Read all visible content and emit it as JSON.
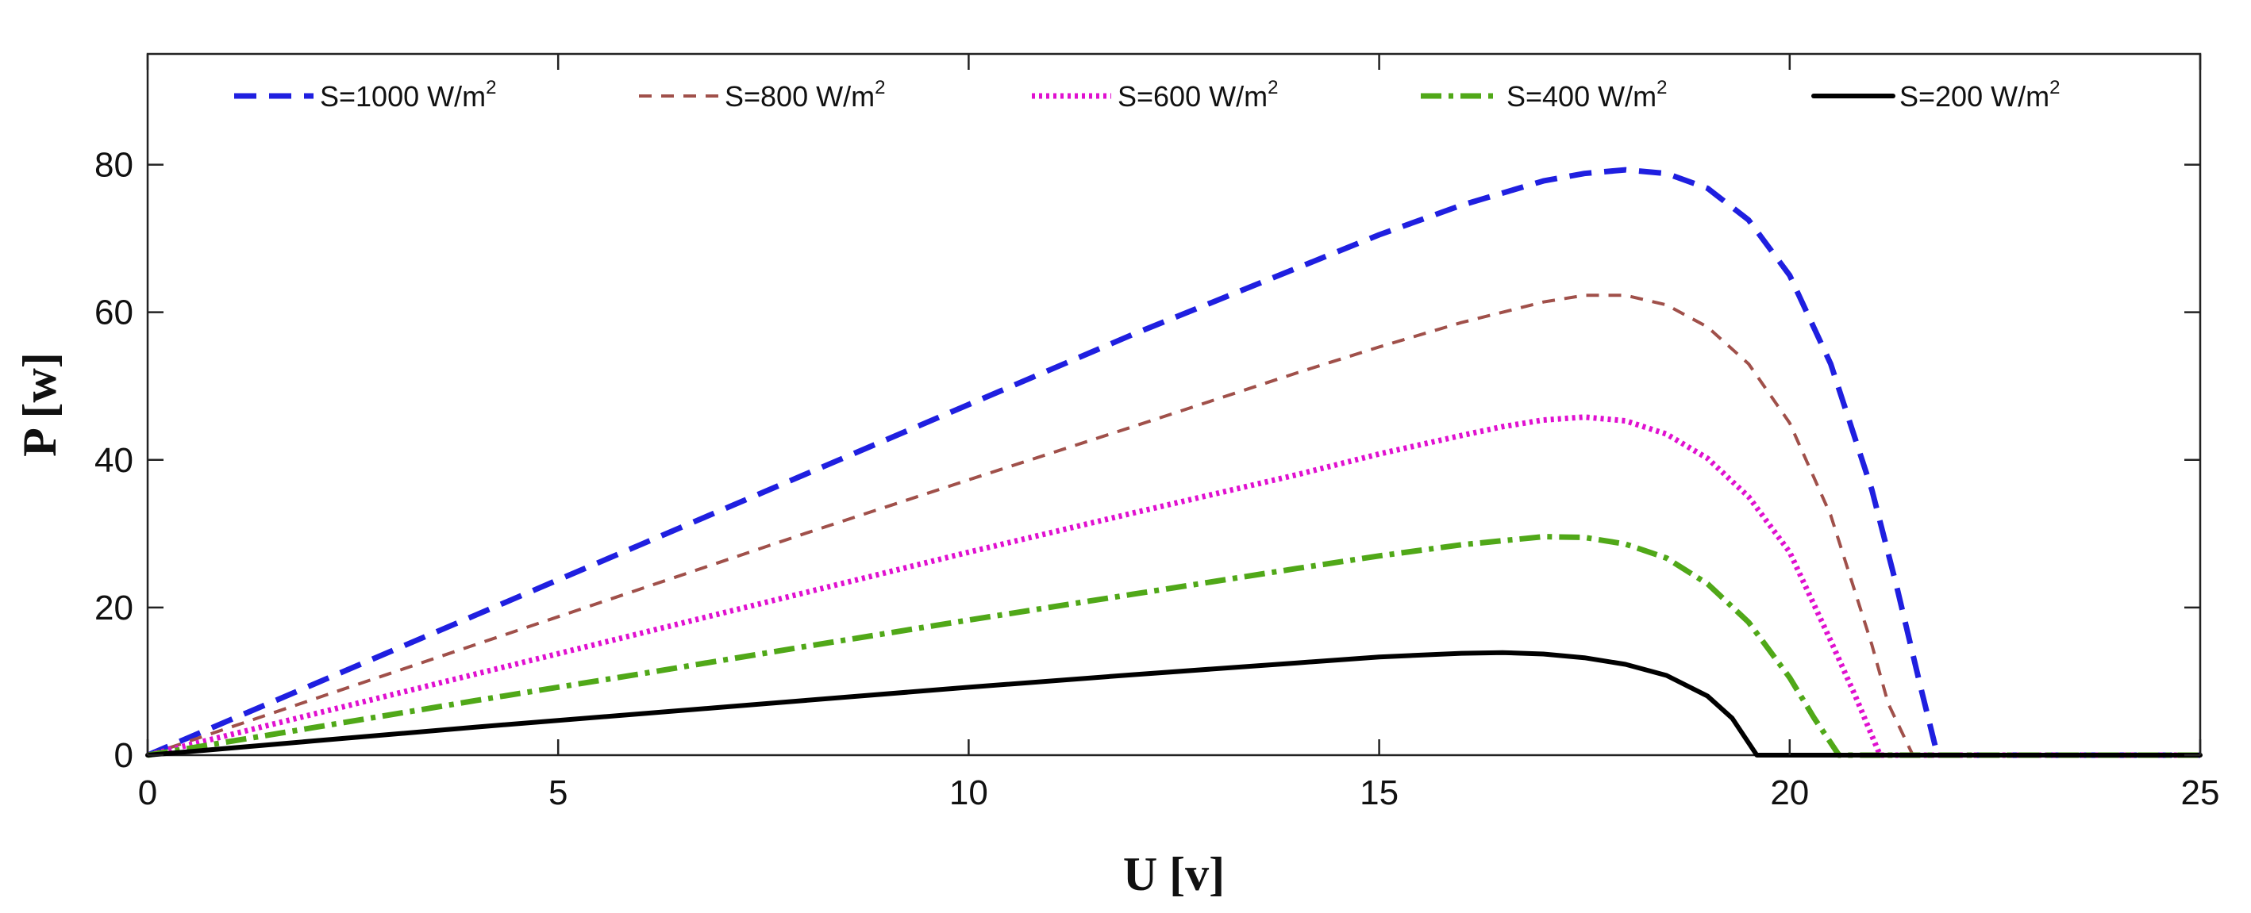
{
  "chart_data": {
    "type": "line",
    "xlabel": "U [v]",
    "ylabel": "P [w]",
    "xlim": [
      0,
      25
    ],
    "ylim": [
      0,
      95
    ],
    "xticks": [
      "0",
      "5",
      "10",
      "15",
      "20",
      "25"
    ],
    "yticks": [
      "0",
      "20",
      "40",
      "60",
      "80"
    ],
    "grid": false,
    "legend_position": "top",
    "series": [
      {
        "name": "S=1000 W/m2",
        "legend_main": "S=1000 W/m",
        "legend_sup": "2",
        "color": "#1f1fe0",
        "style": "dashed",
        "x": [
          0,
          2,
          4,
          6,
          8,
          10,
          12,
          14,
          15,
          16,
          17,
          17.5,
          18,
          18.5,
          19,
          19.5,
          20,
          20.5,
          21,
          21.3,
          21.6,
          21.8,
          25
        ],
        "y": [
          0,
          9.5,
          19,
          28.5,
          38,
          47.5,
          57,
          66,
          70.5,
          74.5,
          77.8,
          78.8,
          79.3,
          78.8,
          76.8,
          72.5,
          65,
          53,
          36,
          23,
          9,
          0,
          0
        ]
      },
      {
        "name": "S=800 W/m2",
        "legend_main": "S=800 W/m",
        "legend_sup": "2",
        "color": "#a0504a",
        "style": "dashed-thin",
        "x": [
          0,
          2,
          4,
          6,
          8,
          10,
          12,
          14,
          15,
          16,
          17,
          17.5,
          18,
          18.5,
          19,
          19.5,
          20,
          20.5,
          21,
          21.2,
          21.5,
          25
        ],
        "y": [
          0,
          7.5,
          15,
          22.5,
          30,
          37.3,
          44.5,
          51.8,
          55.3,
          58.6,
          61.4,
          62.3,
          62.3,
          61,
          58,
          53,
          45,
          32.5,
          15,
          7,
          0,
          0
        ]
      },
      {
        "name": "S=600 W/m2",
        "legend_main": "S=600 W/m",
        "legend_sup": "2",
        "color": "#e010d0",
        "style": "dotted",
        "x": [
          0,
          2,
          4,
          6,
          8,
          10,
          12,
          14,
          15,
          16,
          16.5,
          17,
          17.5,
          18,
          18.5,
          19,
          19.5,
          20,
          20.5,
          20.8,
          21.1,
          25
        ],
        "y": [
          0,
          5.5,
          11,
          16.5,
          22,
          27.5,
          32.8,
          38,
          40.8,
          43.3,
          44.5,
          45.4,
          45.8,
          45.3,
          43.5,
          40.2,
          35,
          27.5,
          15.5,
          8,
          0,
          0
        ]
      },
      {
        "name": "S=400 W/m2",
        "legend_main": "S=400 W/m",
        "legend_sup": "2",
        "color": "#50a818",
        "style": "dashdot",
        "x": [
          0,
          2,
          4,
          6,
          8,
          10,
          12,
          14,
          15,
          16,
          17,
          17.5,
          18,
          18.5,
          19,
          19.5,
          20,
          20.3,
          20.6,
          25
        ],
        "y": [
          0,
          3.7,
          7.4,
          11,
          14.7,
          18.3,
          21.8,
          25.3,
          27,
          28.5,
          29.6,
          29.5,
          28.6,
          26.7,
          23.2,
          18,
          10.5,
          5,
          0,
          0
        ]
      },
      {
        "name": "S=200 W/m2",
        "legend_main": "S=200 W/m",
        "legend_sup": "2",
        "color": "#000000",
        "style": "solid",
        "x": [
          0,
          2,
          4,
          6,
          8,
          10,
          12,
          14,
          15,
          16,
          16.5,
          17,
          17.5,
          18,
          18.5,
          19,
          19.3,
          19.6,
          25
        ],
        "y": [
          0,
          1.9,
          3.8,
          5.6,
          7.4,
          9.2,
          10.9,
          12.5,
          13.3,
          13.8,
          13.9,
          13.7,
          13.2,
          12.3,
          10.8,
          8,
          5,
          0,
          0
        ]
      }
    ]
  }
}
